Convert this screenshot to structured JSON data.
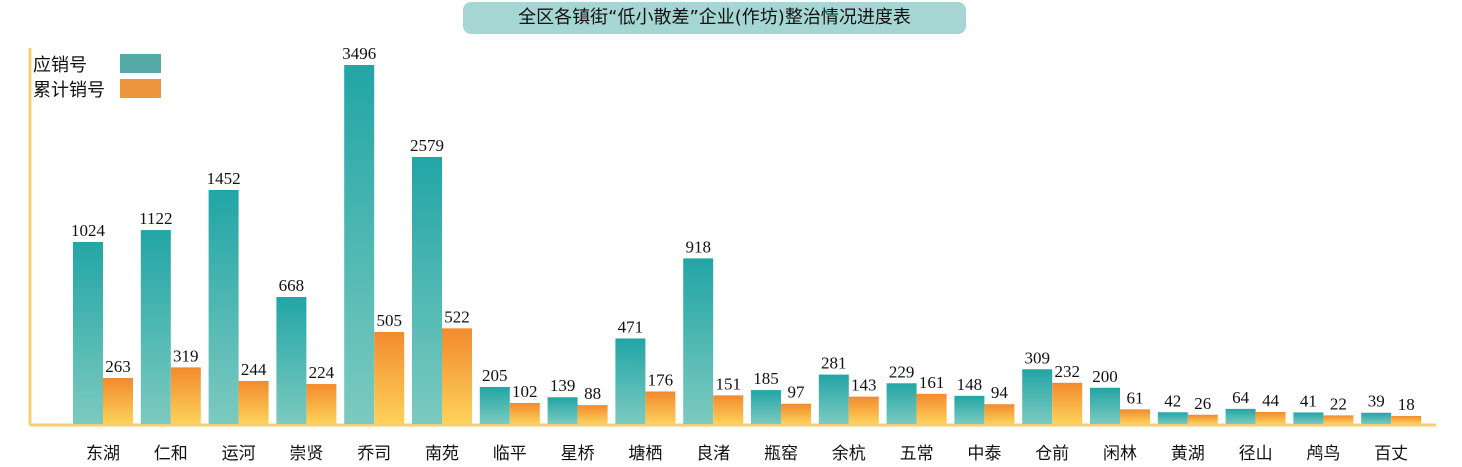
{
  "chart_data": {
    "type": "bar",
    "title": "全区各镇街“低小散差”企业(作坊)整治情况进度表",
    "categories": [
      "东湖",
      "仁和",
      "运河",
      "崇贤",
      "乔司",
      "南苑",
      "临平",
      "星桥",
      "塘栖",
      "良渚",
      "瓶窑",
      "余杭",
      "五常",
      "中泰",
      "仓前",
      "闲林",
      "黄湖",
      "径山",
      "鸬鸟",
      "百丈"
    ],
    "series": [
      {
        "name": "应销号",
        "color": "#2aa8a8",
        "values": [
          1024,
          1122,
          1452,
          668,
          3496,
          2579,
          205,
          139,
          471,
          918,
          185,
          281,
          229,
          148,
          309,
          200,
          42,
          64,
          41,
          39
        ]
      },
      {
        "name": "累计销号",
        "color": "#f39a3a",
        "values": [
          263,
          319,
          244,
          224,
          505,
          522,
          102,
          88,
          176,
          151,
          97,
          143,
          161,
          94,
          232,
          61,
          26,
          44,
          22,
          18
        ]
      }
    ],
    "legend_position": "top-left",
    "grid": false,
    "xlabel": "",
    "ylabel": ""
  }
}
